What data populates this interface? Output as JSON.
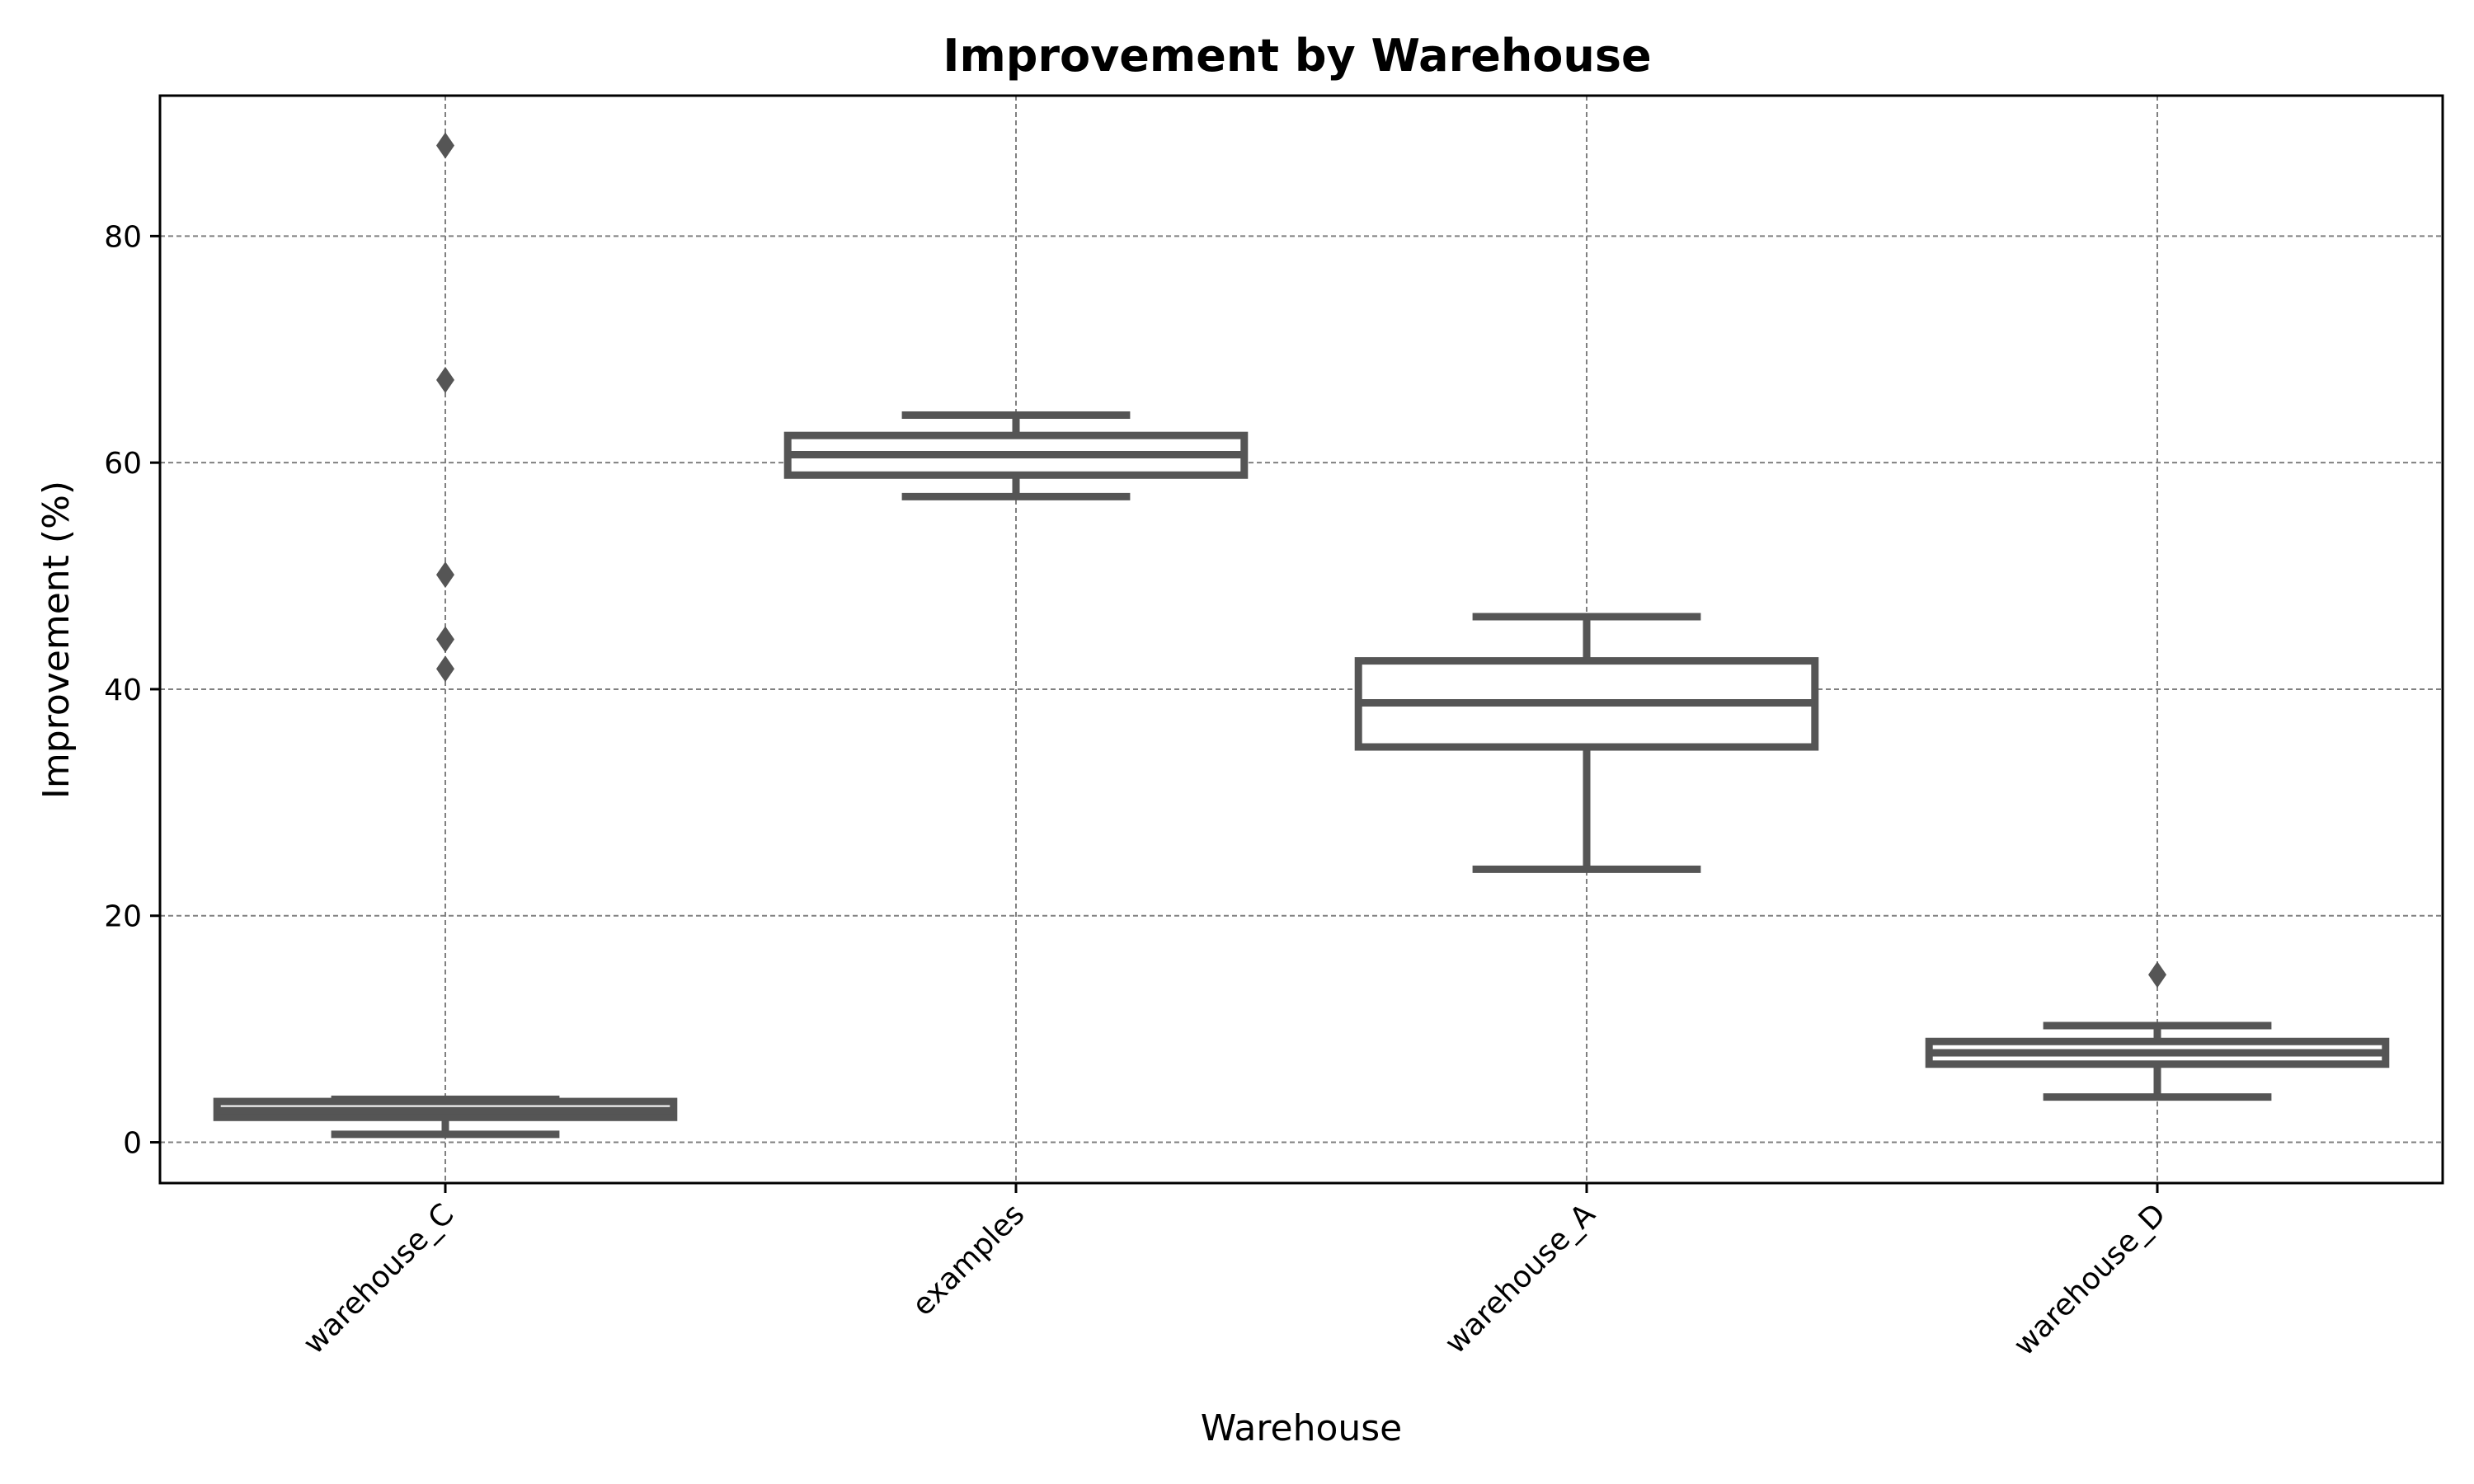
{
  "chart_data": {
    "type": "box",
    "title": "Improvement by Warehouse",
    "xlabel": "Warehouse",
    "ylabel": "Improvement (%)",
    "ylim": [
      -3.6,
      92.4
    ],
    "yticks": [
      0,
      20,
      40,
      60,
      80
    ],
    "grid": true,
    "categories": [
      "warehouse_C",
      "examples",
      "warehouse_A",
      "warehouse_D"
    ],
    "boxes": [
      {
        "category": "warehouse_C",
        "whisker_low": 0.7,
        "q1": 2.2,
        "median": 2.8,
        "q3": 3.6,
        "whisker_high": 3.8,
        "fliers": [
          88.0,
          67.3,
          50.1,
          44.4,
          41.8
        ]
      },
      {
        "category": "examples",
        "whisker_low": 57.0,
        "q1": 58.9,
        "median": 60.7,
        "q3": 62.4,
        "whisker_high": 64.2,
        "fliers": []
      },
      {
        "category": "warehouse_A",
        "whisker_low": 24.1,
        "q1": 34.9,
        "median": 38.8,
        "q3": 42.5,
        "whisker_high": 46.4,
        "fliers": []
      },
      {
        "category": "warehouse_D",
        "whisker_low": 4.0,
        "q1": 6.9,
        "median": 7.9,
        "q3": 8.9,
        "whisker_high": 10.3,
        "fliers": [
          14.8
        ]
      }
    ]
  }
}
